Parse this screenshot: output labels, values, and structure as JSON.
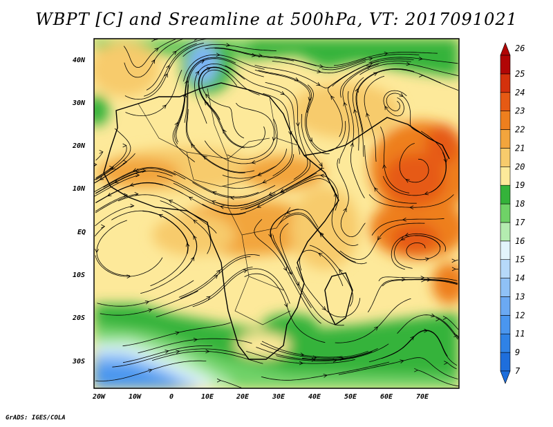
{
  "title": "WBPT [C] and Sreamline at 500hPa, VT: 2017091021",
  "footer": "GrADS: IGES/COLA",
  "lat_labels": [
    "40N",
    "30N",
    "20N",
    "10N",
    "EQ",
    "10S",
    "20S",
    "30S"
  ],
  "lon_labels": [
    "20W",
    "10W",
    "0",
    "10E",
    "20E",
    "30E",
    "40E",
    "50E",
    "60E",
    "70E"
  ],
  "colorbar": {
    "labels": [
      "7",
      "9",
      "11",
      "12",
      "13",
      "14",
      "15",
      "16",
      "17",
      "18",
      "19",
      "20",
      "21",
      "22",
      "23",
      "24",
      "25",
      "26"
    ],
    "colors": [
      "#1e6edc",
      "#2f82e6",
      "#4a96ef",
      "#6ba9f3",
      "#8fc1f6",
      "#b6d9f9",
      "#e2f4fb",
      "#b4ecb0",
      "#6fd267",
      "#34b33a",
      "#fde99a",
      "#f7cb6c",
      "#f2a53d",
      "#ee7f1e",
      "#e65a14",
      "#d4310c",
      "#b10606"
    ]
  },
  "map": {
    "region": {
      "lon": [
        -22,
        80
      ],
      "lat": [
        -36,
        45
      ]
    },
    "field": "WBPT [C]",
    "level": "500hPa",
    "valid_time": "2017091021"
  }
}
